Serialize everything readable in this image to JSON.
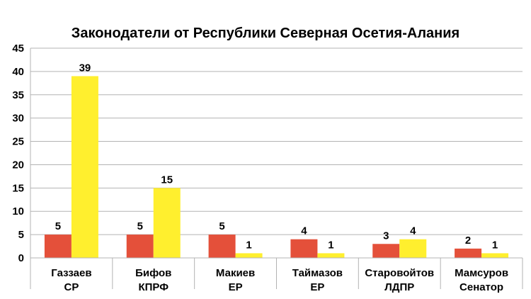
{
  "chart_data": {
    "type": "bar",
    "title": "Законодатели от Республики Северная Осетия-Алания",
    "xlabel": "",
    "ylabel": "",
    "categories": [
      [
        "Газзаев",
        "СР"
      ],
      [
        "Бифов",
        "КПРФ"
      ],
      [
        "Макиев",
        "ЕР"
      ],
      [
        "Таймазов",
        "ЕР"
      ],
      [
        "Старовойтов",
        "ЛДПР"
      ],
      [
        "Мамсуров",
        "Сенатор"
      ]
    ],
    "series": [
      {
        "values": [
          5,
          5,
          5,
          4,
          3,
          2
        ],
        "color": "#e4503a"
      },
      {
        "values": [
          39,
          15,
          1,
          1,
          4,
          1
        ],
        "color": "#ffef2e"
      }
    ],
    "ylim": [
      0,
      45
    ],
    "yticks": [
      0,
      5,
      10,
      15,
      20,
      25,
      30,
      35,
      40,
      45
    ],
    "grid": true,
    "grid_color": "#b3b3b3",
    "data_labels": true,
    "legend": "none"
  }
}
